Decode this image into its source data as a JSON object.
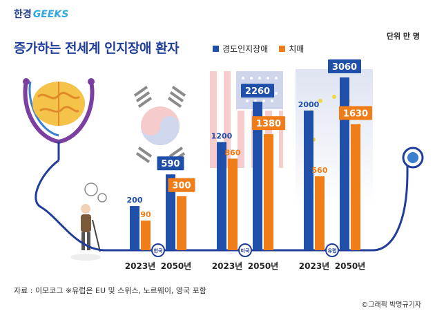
{
  "brand": {
    "part1": "한경",
    "part2": "GEEKS"
  },
  "title": "증가하는 전세계 인지장애 환자",
  "unit": "단위 만 명",
  "legend": {
    "mild": "경도인지장애",
    "dementia": "치매"
  },
  "colors": {
    "mild": "#1f4fa8",
    "dementia": "#ef7d1a",
    "title": "#1f3d99",
    "line": "#1f3d99",
    "bubble": "#1f4fa8"
  },
  "source": "자료 : 이모코그 ※유럽은 EU 및 스위스, 노르웨이, 영국 포함",
  "credit": "©그래픽 박명규기자",
  "chart_data": {
    "type": "bar",
    "series": [
      {
        "name": "경도인지장애",
        "key": "mild"
      },
      {
        "name": "치매",
        "key": "dementia"
      }
    ],
    "groups": [
      {
        "region": "한국",
        "years": [
          {
            "year": "2023년",
            "mild": 200,
            "dementia": 90
          },
          {
            "year": "2050년",
            "mild": 590,
            "dementia": 300
          }
        ]
      },
      {
        "region": "미국",
        "years": [
          {
            "year": "2023년",
            "mild": 1200,
            "dementia": 860
          },
          {
            "year": "2050년",
            "mild": 2260,
            "dementia": 1380
          }
        ]
      },
      {
        "region": "유럽",
        "years": [
          {
            "year": "2023년",
            "mild": 2000,
            "dementia": 560
          },
          {
            "year": "2050년",
            "mild": 3060,
            "dementia": 1630
          }
        ]
      }
    ],
    "xlabel": "",
    "ylabel": ""
  }
}
